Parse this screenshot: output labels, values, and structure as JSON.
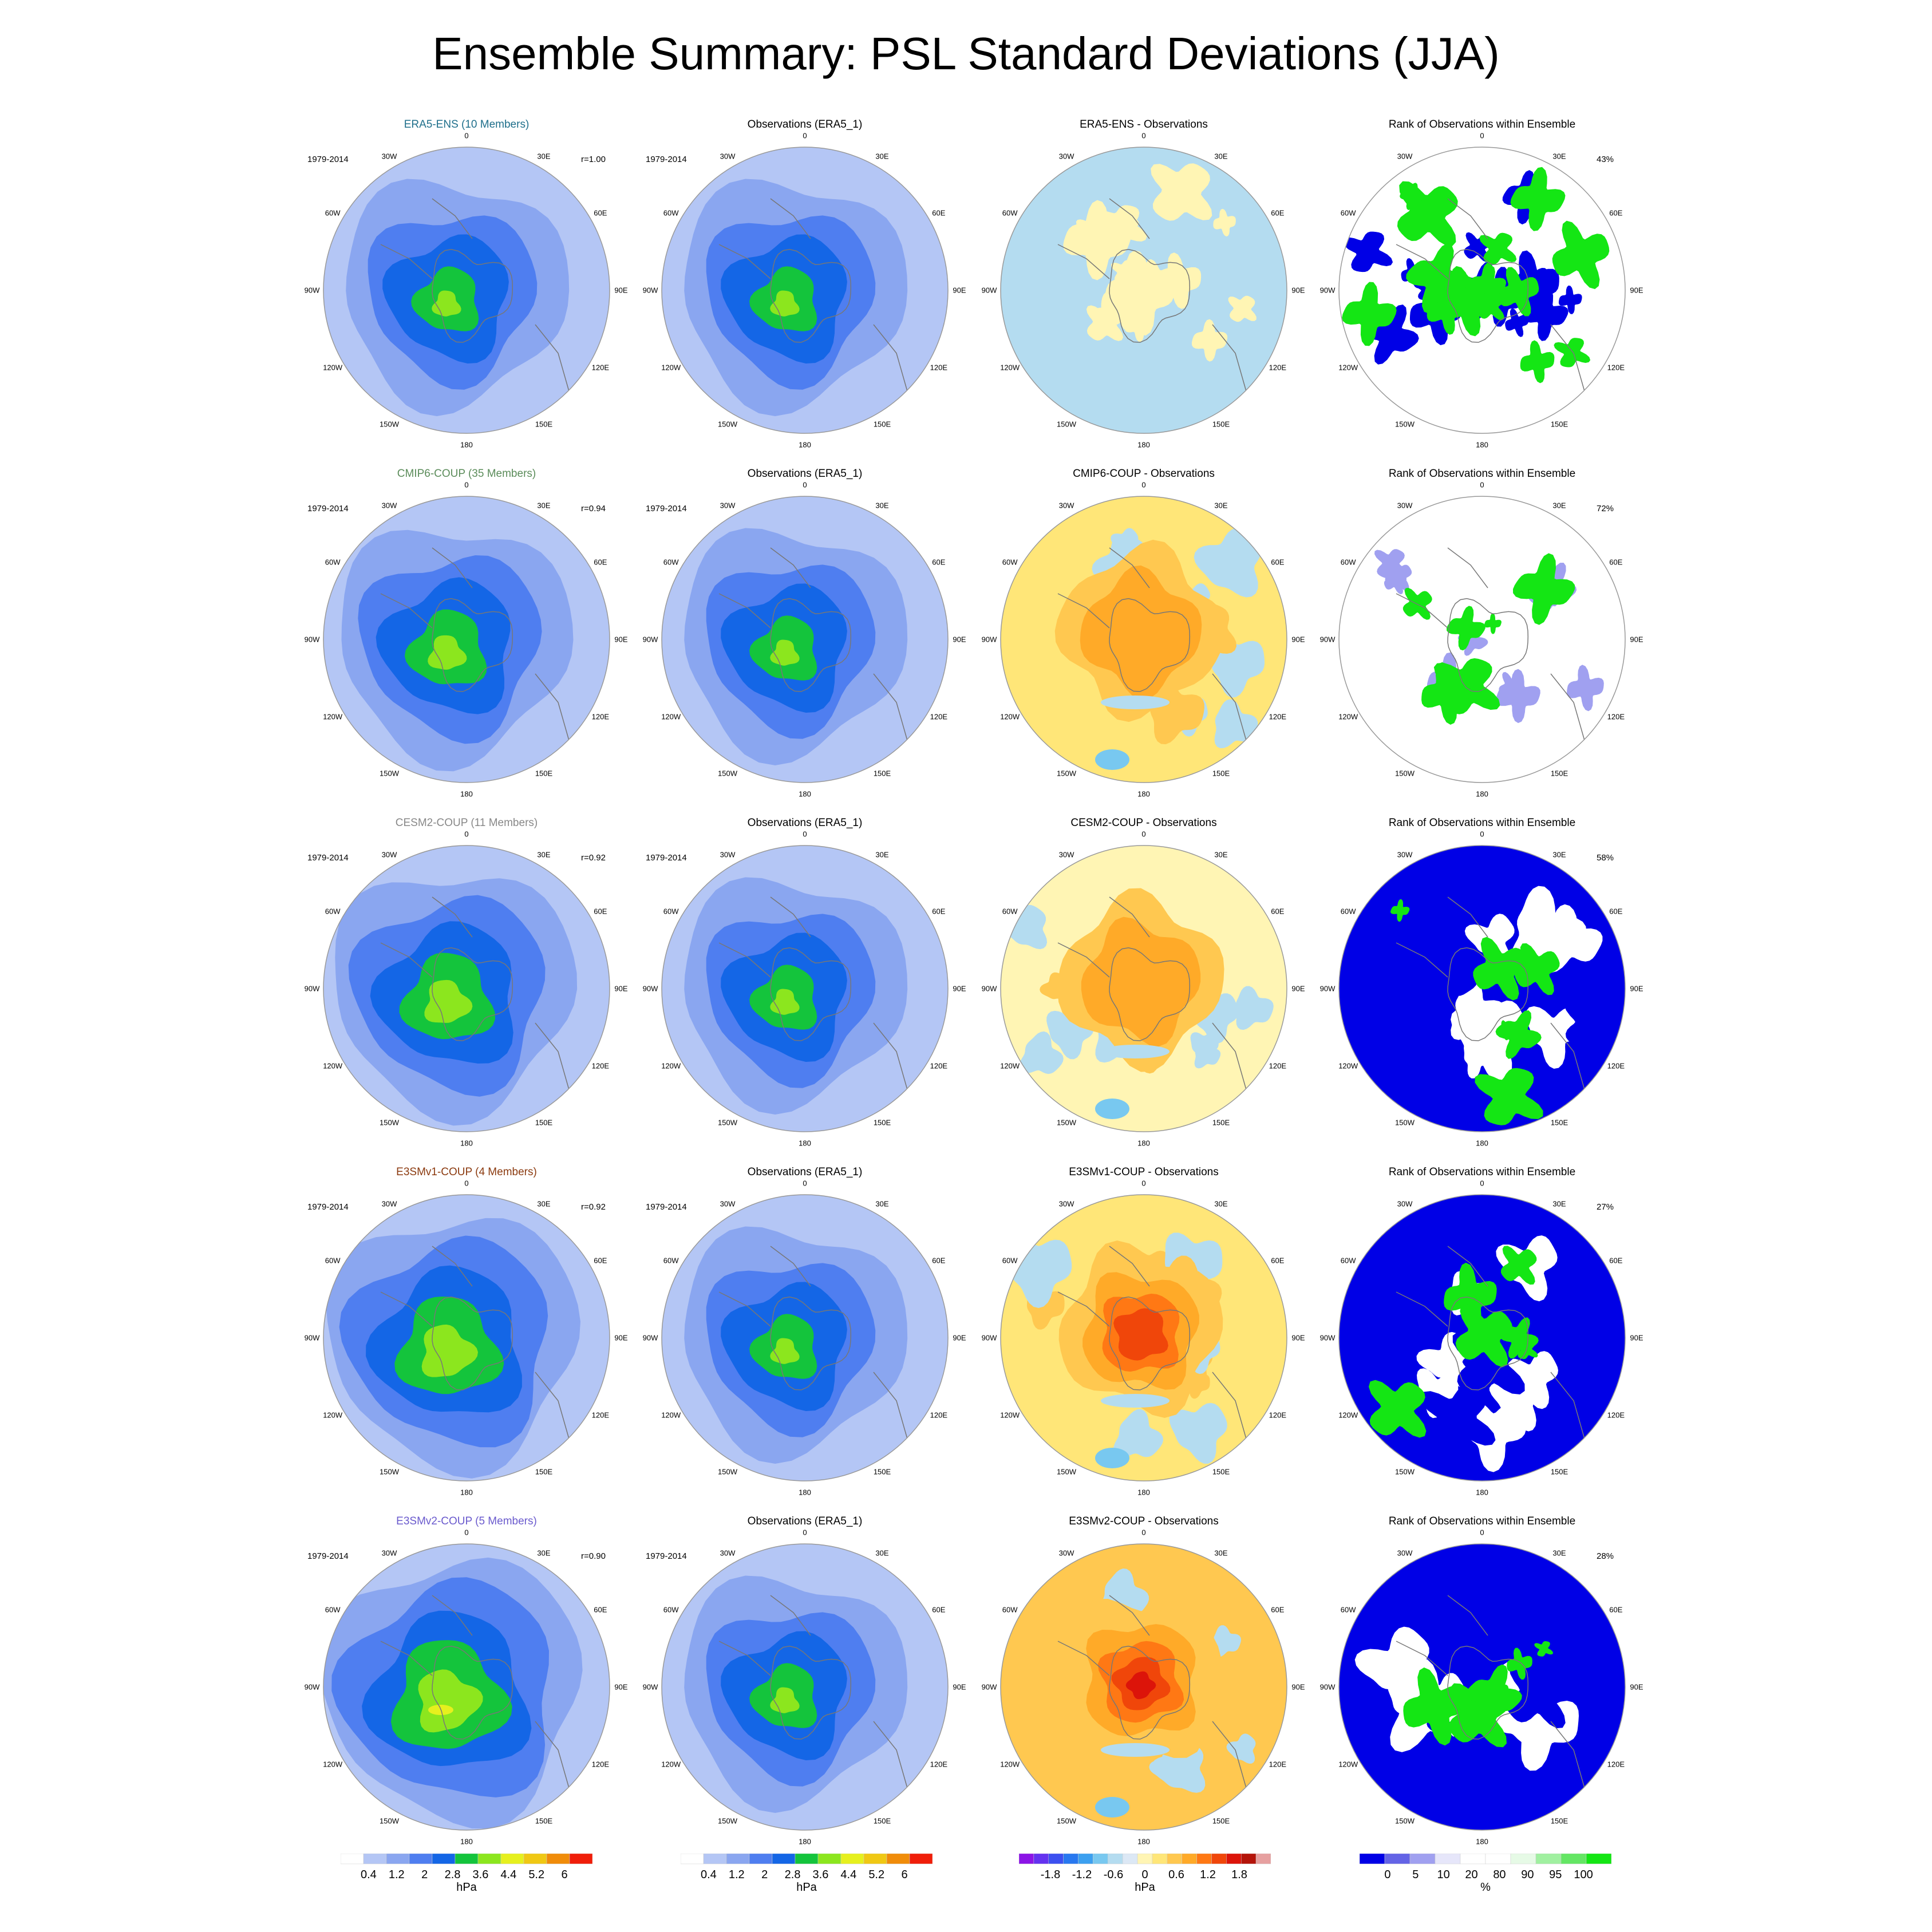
{
  "title": "Ensemble Summary: PSL Standard Deviations (JJA)",
  "years": "1979-2014",
  "lon_labels": [
    "0",
    "30E",
    "60E",
    "90E",
    "120E",
    "150E",
    "180",
    "150W",
    "120W",
    "90W",
    "60W",
    "30W"
  ],
  "columns": {
    "obs_title": "Observations (ERA5_1)",
    "rank_title": "Rank of Observations within Ensemble"
  },
  "rows": [
    {
      "model": "ERA5-ENS (10 Members)",
      "model_color": "#1f6f8b",
      "corr": "r=1.00",
      "diff_title": "ERA5-ENS - Observations",
      "rank_pct": "43%"
    },
    {
      "model": "CMIP6-COUP (35 Members)",
      "model_color": "#5b8c5a",
      "corr": "r=0.94",
      "diff_title": "CMIP6-COUP - Observations",
      "rank_pct": "72%"
    },
    {
      "model": "CESM2-COUP (11 Members)",
      "model_color": "#888888",
      "corr": "r=0.92",
      "diff_title": "CESM2-COUP - Observations",
      "rank_pct": "58%"
    },
    {
      "model": "E3SMv1-COUP (4 Members)",
      "model_color": "#8b3a0f",
      "corr": "r=0.92",
      "diff_title": "E3SMv1-COUP - Observations",
      "rank_pct": "27%"
    },
    {
      "model": "E3SMv2-COUP (5 Members)",
      "model_color": "#6a5acd",
      "corr": "r=0.90",
      "diff_title": "E3SMv2-COUP - Observations",
      "rank_pct": "28%"
    }
  ],
  "colorbars": [
    {
      "unit": "hPa",
      "ticks": [
        "0.4",
        "1.2",
        "2",
        "2.8",
        "3.6",
        "4.4",
        "5.2",
        "6"
      ],
      "colors": [
        "#ffffff",
        "#b4c6f5",
        "#8aa6f0",
        "#4f7ef0",
        "#1466e6",
        "#14c43c",
        "#8ce61e",
        "#e6f01e",
        "#f0c814",
        "#f08c0a",
        "#f01e0a"
      ]
    },
    {
      "unit": "hPa",
      "ticks": [
        "0.4",
        "1.2",
        "2",
        "2.8",
        "3.6",
        "4.4",
        "5.2",
        "6"
      ],
      "colors": [
        "#ffffff",
        "#b4c6f5",
        "#8aa6f0",
        "#4f7ef0",
        "#1466e6",
        "#14c43c",
        "#8ce61e",
        "#e6f01e",
        "#f0c814",
        "#f08c0a",
        "#f01e0a"
      ]
    },
    {
      "unit": "hPa",
      "ticks": [
        "-1.8",
        "-1.2",
        "-0.6",
        "0",
        "0.6",
        "1.2",
        "1.8"
      ],
      "colors": [
        "#8c14e6",
        "#6432f0",
        "#3c50f0",
        "#2878f0",
        "#3ca0f0",
        "#78c8f0",
        "#b4dcf0",
        "#dce8f5",
        "#fff5b4",
        "#ffe678",
        "#ffc850",
        "#ffaa28",
        "#ff7814",
        "#f0460a",
        "#dc140a",
        "#b4140a",
        "#e6a0a0"
      ]
    },
    {
      "unit": "%",
      "ticks": [
        "0",
        "5",
        "10",
        "20",
        "80",
        "90",
        "95",
        "100"
      ],
      "colors": [
        "#0000e6",
        "#6464e6",
        "#a0a0f0",
        "#e6e6fa",
        "#ffffff",
        "#ffffff",
        "#e6fae6",
        "#a0f0a0",
        "#64e664",
        "#14e614"
      ]
    }
  ]
}
